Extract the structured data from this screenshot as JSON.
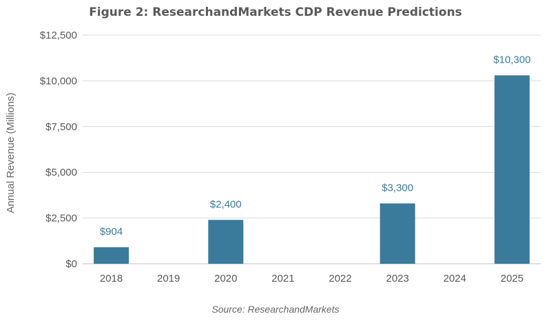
{
  "chart_data": {
    "type": "bar",
    "title": "Figure 2: ResearchandMarkets CDP Revenue Predictions",
    "ylabel": "Annual Revenue (Millions)",
    "xlabel": "",
    "categories": [
      "2018",
      "2019",
      "2020",
      "2021",
      "2022",
      "2023",
      "2024",
      "2025"
    ],
    "values": [
      904,
      null,
      2400,
      null,
      null,
      3300,
      null,
      10300
    ],
    "data_labels": [
      "$904",
      "",
      "$2,400",
      "",
      "",
      "$3,300",
      "",
      "$10,300"
    ],
    "ylim": [
      0,
      12500
    ],
    "yticks": [
      0,
      2500,
      5000,
      7500,
      10000,
      12500
    ],
    "ytick_labels": [
      "$0",
      "$2,500",
      "$5,000",
      "$7,500",
      "$10,000",
      "$12,500"
    ],
    "grid": true,
    "legend": "none",
    "colors": {
      "bar": "#3a7b9c",
      "label": "#3a7b9c",
      "grid": "#d9d9d9"
    }
  },
  "source": "Source: ResearchandMarkets"
}
